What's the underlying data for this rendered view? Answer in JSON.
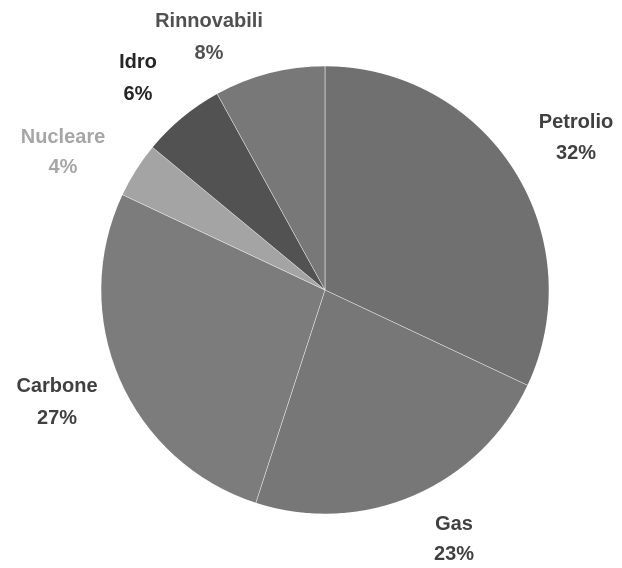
{
  "chart_data": {
    "type": "pie",
    "title": "",
    "start": "top",
    "direction": "clockwise",
    "slices": [
      {
        "label": "Petrolio",
        "value": 32,
        "display": "32%",
        "color": "#707070",
        "label_color": "#404040"
      },
      {
        "label": "Gas",
        "value": 23,
        "display": "23%",
        "color": "#777777",
        "label_color": "#404040"
      },
      {
        "label": "Carbone",
        "value": 27,
        "display": "27%",
        "color": "#7c7c7c",
        "label_color": "#404040"
      },
      {
        "label": "Nucleare",
        "value": 4,
        "display": "4%",
        "color": "#a4a4a4",
        "label_color": "#a6a6a6"
      },
      {
        "label": "Idro",
        "value": 6,
        "display": "6%",
        "color": "#525252",
        "label_color": "#262626"
      },
      {
        "label": "Rinnovabili",
        "value": 8,
        "display": "8%",
        "color": "#787878",
        "label_color": "#505050"
      }
    ]
  }
}
